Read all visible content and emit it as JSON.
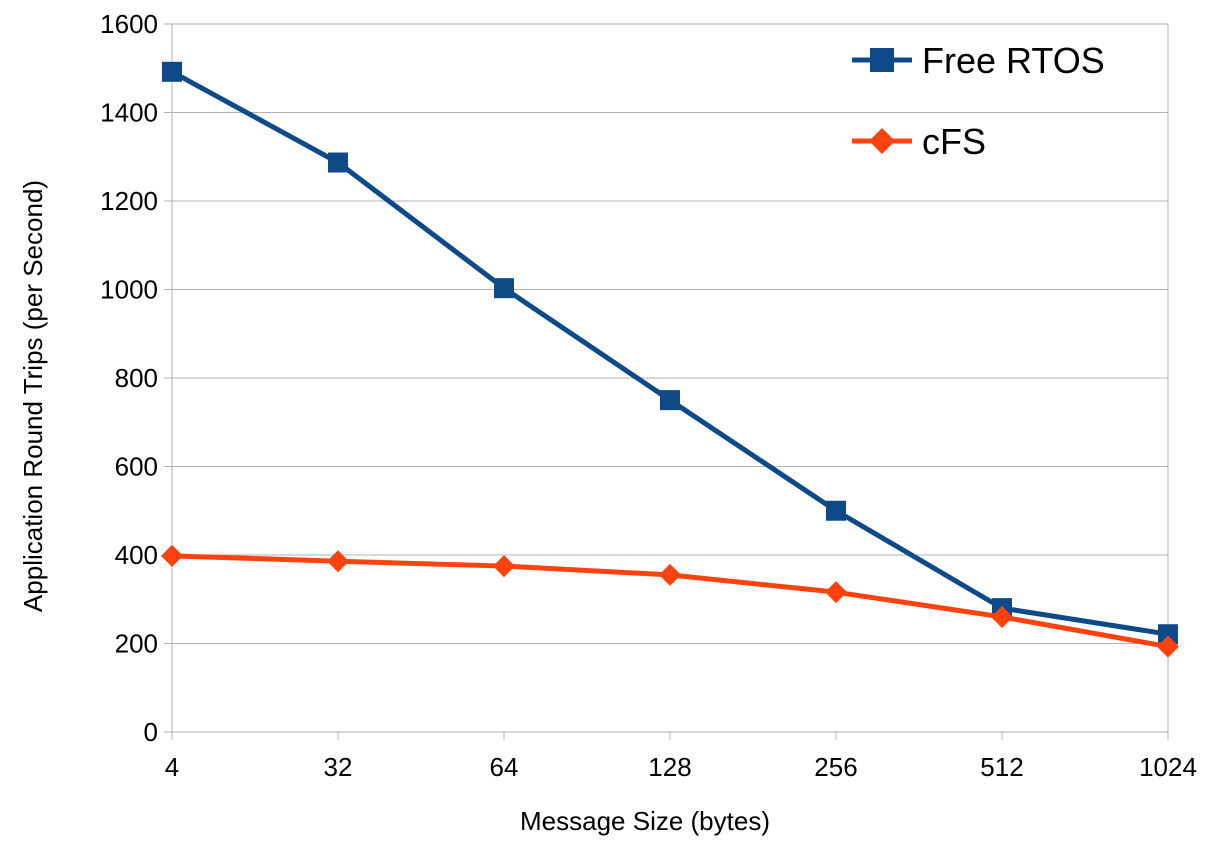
{
  "chart_data": {
    "type": "line",
    "categories": [
      "4",
      "32",
      "64",
      "128",
      "256",
      "512",
      "1024"
    ],
    "series": [
      {
        "name": "Free RTOS",
        "values": [
          1492,
          1287,
          1003,
          750,
          500,
          280,
          221
        ],
        "color": "#0e4a87",
        "marker": "square"
      },
      {
        "name": "cFS",
        "values": [
          398,
          386,
          375,
          355,
          316,
          260,
          193
        ],
        "color": "#ff420e",
        "marker": "diamond"
      }
    ],
    "title": "",
    "xlabel": "Message Size (bytes)",
    "ylabel": "Application Round Trips (per Second)",
    "ylim": [
      0,
      1600
    ],
    "yticks": [
      0,
      200,
      400,
      600,
      800,
      1000,
      1200,
      1400,
      1600
    ],
    "grid": "horizontal",
    "legend_position": "top-right"
  }
}
